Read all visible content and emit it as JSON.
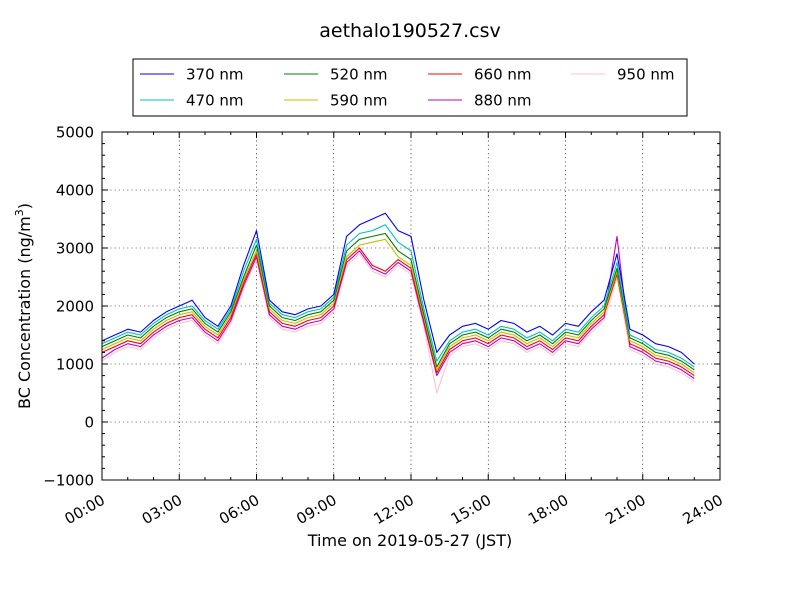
{
  "chart_data": {
    "type": "line",
    "title": "aethalo190527.csv",
    "xlabel": "Time on 2019-05-27 (JST)",
    "ylabel_main": "BC Concentration (ng/m",
    "ylabel_sup": "3",
    "ylabel_close": ")",
    "xlim": [
      0,
      24
    ],
    "ylim": [
      -1000,
      5000
    ],
    "x_ticks": [
      {
        "value": 0,
        "label": "00:00"
      },
      {
        "value": 3,
        "label": "03:00"
      },
      {
        "value": 6,
        "label": "06:00"
      },
      {
        "value": 9,
        "label": "09:00"
      },
      {
        "value": 12,
        "label": "12:00"
      },
      {
        "value": 15,
        "label": "15:00"
      },
      {
        "value": 18,
        "label": "18:00"
      },
      {
        "value": 21,
        "label": "21:00"
      },
      {
        "value": 24,
        "label": "24:00"
      }
    ],
    "y_ticks": [
      {
        "value": -1000,
        "label": "−1000"
      },
      {
        "value": 0,
        "label": "0"
      },
      {
        "value": 1000,
        "label": "1000"
      },
      {
        "value": 2000,
        "label": "2000"
      },
      {
        "value": 3000,
        "label": "3000"
      },
      {
        "value": 4000,
        "label": "4000"
      },
      {
        "value": 5000,
        "label": "5000"
      }
    ],
    "grid": true,
    "legend_position": "top-center",
    "series": [
      {
        "name": "370 nm",
        "color": "#0000ff",
        "x": [
          0.0,
          0.5,
          1.0,
          1.5,
          2.0,
          2.5,
          3.0,
          3.5,
          4.0,
          4.5,
          5.0,
          5.5,
          6.0,
          6.5,
          7.0,
          7.5,
          8.0,
          8.5,
          9.0,
          9.5,
          10.0,
          10.5,
          11.0,
          11.5,
          12.0,
          12.5,
          13.0,
          13.5,
          14.0,
          14.5,
          15.0,
          15.5,
          16.0,
          16.5,
          17.0,
          17.5,
          18.0,
          18.5,
          19.0,
          19.5,
          20.0,
          20.5,
          21.0,
          21.5,
          22.0,
          22.5,
          23.0
        ],
        "y": [
          1400,
          1500,
          1600,
          1550,
          1750,
          1900,
          2000,
          2100,
          1800,
          1650,
          2000,
          2700,
          3300,
          2100,
          1900,
          1850,
          1950,
          2000,
          2200,
          3200,
          3400,
          3500,
          3600,
          3300,
          3200,
          2100,
          1200,
          1500,
          1650,
          1700,
          1600,
          1750,
          1700,
          1550,
          1650,
          1500,
          1700,
          1650,
          1900,
          2100,
          2900,
          1600,
          1500,
          1350,
          1300,
          1200,
          1000
        ]
      },
      {
        "name": "470 nm",
        "color": "#00c0c0",
        "x": [
          0.0,
          0.5,
          1.0,
          1.5,
          2.0,
          2.5,
          3.0,
          3.5,
          4.0,
          4.5,
          5.0,
          5.5,
          6.0,
          6.5,
          7.0,
          7.5,
          8.0,
          8.5,
          9.0,
          9.5,
          10.0,
          10.5,
          11.0,
          11.5,
          12.0,
          12.5,
          13.0,
          13.5,
          14.0,
          14.5,
          15.0,
          15.5,
          16.0,
          16.5,
          17.0,
          17.5,
          18.0,
          18.5,
          19.0,
          19.5,
          20.0,
          20.5,
          21.0,
          21.5,
          22.0,
          22.5,
          23.0
        ],
        "y": [
          1350,
          1450,
          1550,
          1500,
          1700,
          1850,
          1950,
          2000,
          1750,
          1600,
          1950,
          2600,
          3150,
          2050,
          1850,
          1800,
          1900,
          1950,
          2150,
          3050,
          3250,
          3300,
          3400,
          3100,
          2950,
          1950,
          1050,
          1400,
          1550,
          1600,
          1500,
          1650,
          1600,
          1450,
          1550,
          1400,
          1600,
          1550,
          1800,
          2000,
          2750,
          1500,
          1400,
          1250,
          1200,
          1100,
          950
        ]
      },
      {
        "name": "520 nm",
        "color": "#008000",
        "x": [
          0.0,
          0.5,
          1.0,
          1.5,
          2.0,
          2.5,
          3.0,
          3.5,
          4.0,
          4.5,
          5.0,
          5.5,
          6.0,
          6.5,
          7.0,
          7.5,
          8.0,
          8.5,
          9.0,
          9.5,
          10.0,
          10.5,
          11.0,
          11.5,
          12.0,
          12.5,
          13.0,
          13.5,
          14.0,
          14.5,
          15.0,
          15.5,
          16.0,
          16.5,
          17.0,
          17.5,
          18.0,
          18.5,
          19.0,
          19.5,
          20.0,
          20.5,
          21.0,
          21.5,
          22.0,
          22.5,
          23.0
        ],
        "y": [
          1300,
          1400,
          1500,
          1450,
          1650,
          1800,
          1900,
          1950,
          1700,
          1550,
          1900,
          2500,
          3050,
          2000,
          1800,
          1750,
          1850,
          1900,
          2100,
          2950,
          3150,
          3200,
          3250,
          2950,
          2800,
          1850,
          950,
          1350,
          1500,
          1550,
          1450,
          1600,
          1550,
          1400,
          1500,
          1350,
          1550,
          1500,
          1750,
          1950,
          2650,
          1450,
          1350,
          1200,
          1150,
          1050,
          900
        ]
      },
      {
        "name": "590 nm",
        "color": "#c0c000",
        "x": [
          0.0,
          0.5,
          1.0,
          1.5,
          2.0,
          2.5,
          3.0,
          3.5,
          4.0,
          4.5,
          5.0,
          5.5,
          6.0,
          6.5,
          7.0,
          7.5,
          8.0,
          8.5,
          9.0,
          9.5,
          10.0,
          10.5,
          11.0,
          11.5,
          12.0,
          12.5,
          13.0,
          13.5,
          14.0,
          14.5,
          15.0,
          15.5,
          16.0,
          16.5,
          17.0,
          17.5,
          18.0,
          18.5,
          19.0,
          19.5,
          20.0,
          20.5,
          21.0,
          21.5,
          22.0,
          22.5,
          23.0
        ],
        "y": [
          1250,
          1350,
          1450,
          1400,
          1600,
          1750,
          1850,
          1900,
          1650,
          1500,
          1850,
          2450,
          2950,
          1950,
          1750,
          1700,
          1800,
          1850,
          2050,
          2850,
          3050,
          3100,
          3150,
          2850,
          2700,
          1800,
          900,
          1300,
          1450,
          1500,
          1400,
          1550,
          1500,
          1350,
          1450,
          1300,
          1500,
          1450,
          1700,
          1900,
          2600,
          1400,
          1300,
          1150,
          1100,
          1000,
          850
        ]
      },
      {
        "name": "660 nm",
        "color": "#ff0000",
        "x": [
          0.0,
          0.5,
          1.0,
          1.5,
          2.0,
          2.5,
          3.0,
          3.5,
          4.0,
          4.5,
          5.0,
          5.5,
          6.0,
          6.5,
          7.0,
          7.5,
          8.0,
          8.5,
          9.0,
          9.5,
          10.0,
          10.5,
          11.0,
          11.5,
          12.0,
          12.5,
          13.0,
          13.5,
          14.0,
          14.5,
          15.0,
          15.5,
          16.0,
          16.5,
          17.0,
          17.5,
          18.0,
          18.5,
          19.0,
          19.5,
          20.0,
          20.5,
          21.0,
          21.5,
          22.0,
          22.5,
          23.0
        ],
        "y": [
          1200,
          1300,
          1400,
          1350,
          1550,
          1700,
          1800,
          1850,
          1600,
          1450,
          1800,
          2400,
          2900,
          1900,
          1700,
          1650,
          1750,
          1800,
          2000,
          2800,
          3000,
          2700,
          2600,
          2800,
          2650,
          1750,
          850,
          1250,
          1400,
          1450,
          1350,
          1500,
          1450,
          1300,
          1400,
          1250,
          1450,
          1400,
          1650,
          1850,
          2550,
          1350,
          1250,
          1100,
          1050,
          950,
          800
        ]
      },
      {
        "name": "880 nm",
        "color": "#c000c0",
        "x": [
          0.0,
          0.5,
          1.0,
          1.5,
          2.0,
          2.5,
          3.0,
          3.5,
          4.0,
          4.5,
          5.0,
          5.5,
          6.0,
          6.5,
          7.0,
          7.5,
          8.0,
          8.5,
          9.0,
          9.5,
          10.0,
          10.5,
          11.0,
          11.5,
          12.0,
          12.5,
          13.0,
          13.5,
          14.0,
          14.5,
          15.0,
          15.5,
          16.0,
          16.5,
          17.0,
          17.5,
          18.0,
          18.5,
          19.0,
          19.5,
          20.0,
          20.5,
          21.0,
          21.5,
          22.0,
          22.5,
          23.0
        ],
        "y": [
          1100,
          1250,
          1350,
          1300,
          1500,
          1650,
          1750,
          1800,
          1550,
          1400,
          1750,
          2350,
          2850,
          1850,
          1650,
          1600,
          1700,
          1750,
          1950,
          2750,
          2950,
          2650,
          2550,
          2750,
          2600,
          1700,
          800,
          1200,
          1350,
          1400,
          1300,
          1450,
          1400,
          1250,
          1350,
          1200,
          1400,
          1350,
          1600,
          1800,
          3200,
          1300,
          1200,
          1050,
          1000,
          900,
          750
        ]
      },
      {
        "name": "950 nm",
        "color": "#ffc0cb",
        "x": [
          0.0,
          0.5,
          1.0,
          1.5,
          2.0,
          2.5,
          3.0,
          3.5,
          4.0,
          4.5,
          5.0,
          5.5,
          6.0,
          6.5,
          7.0,
          7.5,
          8.0,
          8.5,
          9.0,
          9.5,
          10.0,
          10.5,
          11.0,
          11.5,
          12.0,
          12.5,
          13.0,
          13.5,
          14.0,
          14.5,
          15.0,
          15.5,
          16.0,
          16.5,
          17.0,
          17.5,
          18.0,
          18.5,
          19.0,
          19.5,
          20.0,
          20.5,
          21.0,
          21.5,
          22.0,
          22.5,
          23.0
        ],
        "y": [
          1050,
          1200,
          1300,
          1250,
          1450,
          1600,
          1700,
          1750,
          1500,
          1350,
          1700,
          2300,
          2800,
          1800,
          1600,
          1550,
          1650,
          1700,
          1900,
          2700,
          2900,
          2600,
          2500,
          2700,
          2550,
          1650,
          500,
          1150,
          1300,
          1350,
          1250,
          1400,
          1350,
          1200,
          1300,
          1150,
          1350,
          1300,
          1550,
          1750,
          2500,
          1250,
          1150,
          1000,
          950,
          850,
          700
        ]
      }
    ]
  }
}
